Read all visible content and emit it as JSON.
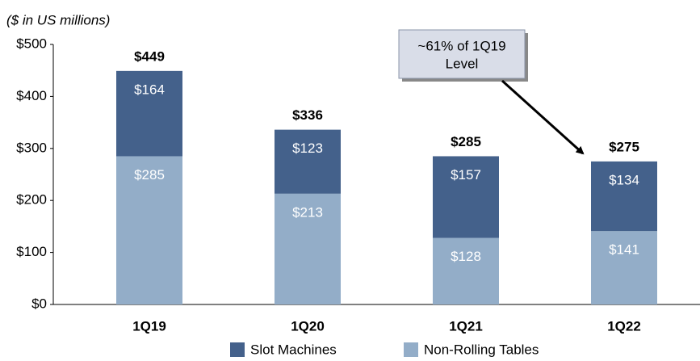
{
  "chart_data": {
    "type": "stacked_bar",
    "subtitle": "($ in US millions)",
    "categories": [
      "1Q19",
      "1Q20",
      "1Q21",
      "1Q22"
    ],
    "series": [
      {
        "name": "Slot Machines",
        "color": "#44618b",
        "values": [
          164,
          123,
          157,
          134
        ],
        "value_labels": [
          "$164",
          "$123",
          "$157",
          "$134"
        ]
      },
      {
        "name": "Non-Rolling Tables",
        "color": "#93adc8",
        "values": [
          285,
          213,
          128,
          141
        ],
        "value_labels": [
          "$285",
          "$213",
          "$128",
          "$141"
        ]
      }
    ],
    "totals": [
      449,
      336,
      285,
      275
    ],
    "total_labels": [
      "$449",
      "$336",
      "$285",
      "$275"
    ],
    "ylim": [
      0,
      500
    ],
    "yticks": [
      {
        "value": 0,
        "label": "$0"
      },
      {
        "value": 100,
        "label": "$100"
      },
      {
        "value": 200,
        "label": "$200"
      },
      {
        "value": 300,
        "label": "$300"
      },
      {
        "value": 400,
        "label": "$400"
      },
      {
        "value": 500,
        "label": "$500"
      }
    ],
    "annotation": "~61% of 1Q19 Level",
    "legend": "bottom"
  }
}
